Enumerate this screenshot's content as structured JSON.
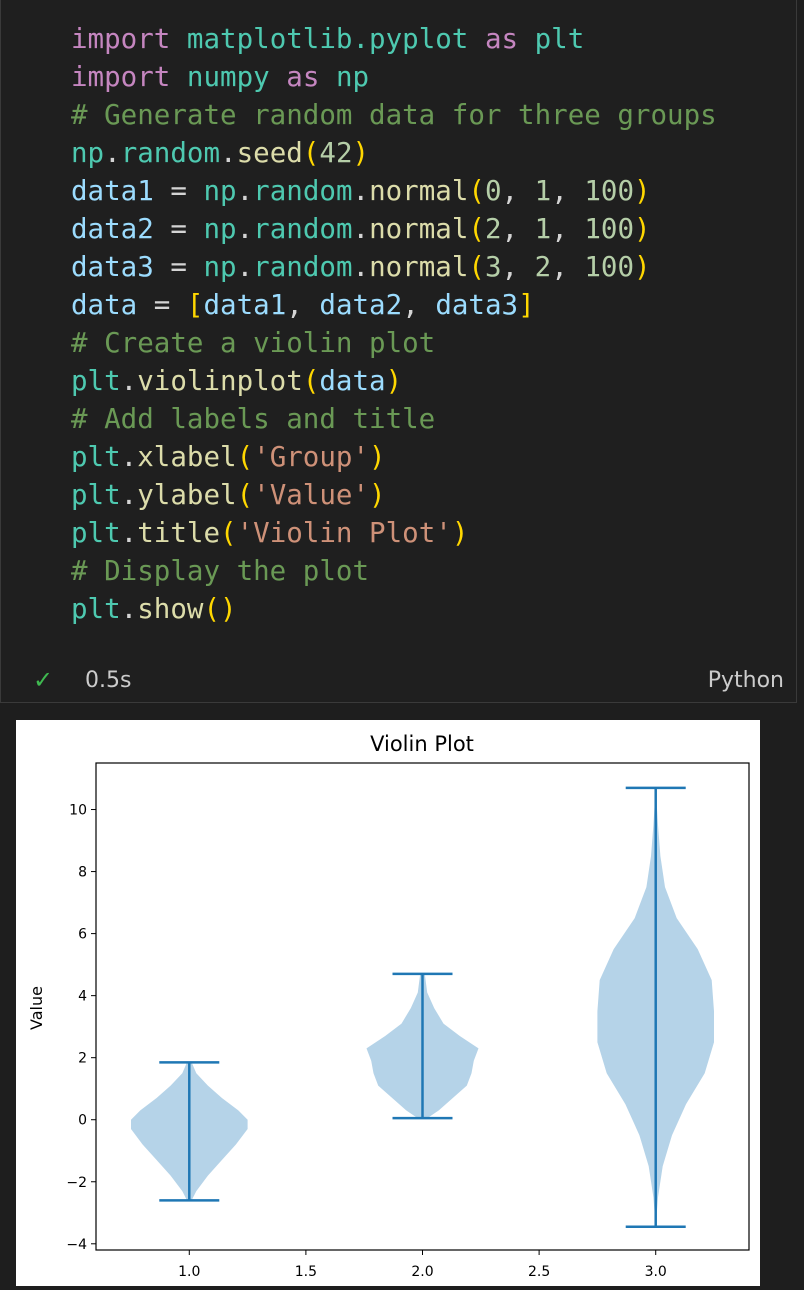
{
  "cell": {
    "code_lines": [
      [
        [
          "kw",
          "import"
        ],
        [
          "t",
          " "
        ],
        [
          "mod",
          "matplotlib.pyplot"
        ],
        [
          "t",
          " "
        ],
        [
          "kw",
          "as"
        ],
        [
          "t",
          " "
        ],
        [
          "mod",
          "plt"
        ]
      ],
      [
        [
          "kw",
          "import"
        ],
        [
          "t",
          " "
        ],
        [
          "mod",
          "numpy"
        ],
        [
          "t",
          " "
        ],
        [
          "kw",
          "as"
        ],
        [
          "t",
          " "
        ],
        [
          "mod",
          "np"
        ]
      ],
      [
        [
          "cm",
          "# Generate random data for three groups"
        ]
      ],
      [
        [
          "mod",
          "np"
        ],
        [
          "t",
          "."
        ],
        [
          "mod",
          "random"
        ],
        [
          "t",
          "."
        ],
        [
          "fn",
          "seed"
        ],
        [
          "paren",
          "("
        ],
        [
          "num",
          "42"
        ],
        [
          "paren",
          ")"
        ]
      ],
      [
        [
          "var",
          "data1"
        ],
        [
          "t",
          " = "
        ],
        [
          "mod",
          "np"
        ],
        [
          "t",
          "."
        ],
        [
          "mod",
          "random"
        ],
        [
          "t",
          "."
        ],
        [
          "fn",
          "normal"
        ],
        [
          "paren",
          "("
        ],
        [
          "num",
          "0"
        ],
        [
          "t",
          ", "
        ],
        [
          "num",
          "1"
        ],
        [
          "t",
          ", "
        ],
        [
          "num",
          "100"
        ],
        [
          "paren",
          ")"
        ]
      ],
      [
        [
          "var",
          "data2"
        ],
        [
          "t",
          " = "
        ],
        [
          "mod",
          "np"
        ],
        [
          "t",
          "."
        ],
        [
          "mod",
          "random"
        ],
        [
          "t",
          "."
        ],
        [
          "fn",
          "normal"
        ],
        [
          "paren",
          "("
        ],
        [
          "num",
          "2"
        ],
        [
          "t",
          ", "
        ],
        [
          "num",
          "1"
        ],
        [
          "t",
          ", "
        ],
        [
          "num",
          "100"
        ],
        [
          "paren",
          ")"
        ]
      ],
      [
        [
          "var",
          "data3"
        ],
        [
          "t",
          " = "
        ],
        [
          "mod",
          "np"
        ],
        [
          "t",
          "."
        ],
        [
          "mod",
          "random"
        ],
        [
          "t",
          "."
        ],
        [
          "fn",
          "normal"
        ],
        [
          "paren",
          "("
        ],
        [
          "num",
          "3"
        ],
        [
          "t",
          ", "
        ],
        [
          "num",
          "2"
        ],
        [
          "t",
          ", "
        ],
        [
          "num",
          "100"
        ],
        [
          "paren",
          ")"
        ]
      ],
      [
        [
          "var",
          "data"
        ],
        [
          "t",
          " = "
        ],
        [
          "bracket",
          "["
        ],
        [
          "var",
          "data1"
        ],
        [
          "t",
          ", "
        ],
        [
          "var",
          "data2"
        ],
        [
          "t",
          ", "
        ],
        [
          "var",
          "data3"
        ],
        [
          "bracket",
          "]"
        ]
      ],
      [
        [
          "cm",
          "# Create a violin plot"
        ]
      ],
      [
        [
          "mod",
          "plt"
        ],
        [
          "t",
          "."
        ],
        [
          "fn",
          "violinplot"
        ],
        [
          "paren",
          "("
        ],
        [
          "var",
          "data"
        ],
        [
          "paren",
          ")"
        ]
      ],
      [
        [
          "cm",
          "# Add labels and title"
        ]
      ],
      [
        [
          "mod",
          "plt"
        ],
        [
          "t",
          "."
        ],
        [
          "fn",
          "xlabel"
        ],
        [
          "paren",
          "("
        ],
        [
          "str",
          "'Group'"
        ],
        [
          "paren",
          ")"
        ]
      ],
      [
        [
          "mod",
          "plt"
        ],
        [
          "t",
          "."
        ],
        [
          "fn",
          "ylabel"
        ],
        [
          "paren",
          "("
        ],
        [
          "str",
          "'Value'"
        ],
        [
          "paren",
          ")"
        ]
      ],
      [
        [
          "mod",
          "plt"
        ],
        [
          "t",
          "."
        ],
        [
          "fn",
          "title"
        ],
        [
          "paren",
          "("
        ],
        [
          "str",
          "'Violin Plot'"
        ],
        [
          "paren",
          ")"
        ]
      ],
      [
        [
          "cm",
          "# Display the plot"
        ]
      ],
      [
        [
          "mod",
          "plt"
        ],
        [
          "t",
          "."
        ],
        [
          "fn",
          "show"
        ],
        [
          "paren",
          "("
        ],
        [
          "paren",
          ")"
        ]
      ]
    ],
    "status": {
      "check": "✓",
      "elapsed": "0.5s",
      "language": "Python"
    }
  },
  "chart_data": {
    "type": "violin",
    "title": "Violin Plot",
    "xlabel": "",
    "ylabel": "Value",
    "xlim": [
      0.6,
      3.4
    ],
    "ylim": [
      -4.2,
      11.5
    ],
    "xticks": [
      1.0,
      1.5,
      2.0,
      2.5,
      3.0
    ],
    "xtick_labels": [
      "1.0",
      "1.5",
      "2.0",
      "2.5",
      "3.0"
    ],
    "yticks": [
      -4,
      -2,
      0,
      2,
      4,
      6,
      8,
      10
    ],
    "ytick_labels": [
      "−4",
      "−2",
      "0",
      "2",
      "4",
      "6",
      "8",
      "10"
    ],
    "color": "#1f77b4",
    "body_color": "#b5d3e8",
    "violins": [
      {
        "position": 1.0,
        "min": -2.6,
        "max": 1.85,
        "profile": [
          [
            -2.6,
            0.01
          ],
          [
            -2.3,
            0.03
          ],
          [
            -1.8,
            0.08
          ],
          [
            -1.3,
            0.14
          ],
          [
            -0.8,
            0.2
          ],
          [
            -0.3,
            0.25
          ],
          [
            0.0,
            0.25
          ],
          [
            0.3,
            0.21
          ],
          [
            0.7,
            0.14
          ],
          [
            1.1,
            0.08
          ],
          [
            1.5,
            0.03
          ],
          [
            1.85,
            0.01
          ]
        ]
      },
      {
        "position": 2.0,
        "min": 0.05,
        "max": 4.7,
        "profile": [
          [
            0.05,
            0.02
          ],
          [
            0.3,
            0.07
          ],
          [
            0.7,
            0.13
          ],
          [
            1.1,
            0.19
          ],
          [
            1.5,
            0.21
          ],
          [
            1.9,
            0.22
          ],
          [
            2.3,
            0.24
          ],
          [
            2.7,
            0.16
          ],
          [
            3.1,
            0.09
          ],
          [
            3.6,
            0.05
          ],
          [
            4.1,
            0.02
          ],
          [
            4.7,
            0.01
          ]
        ]
      },
      {
        "position": 3.0,
        "min": -3.45,
        "max": 10.7,
        "profile": [
          [
            -3.45,
            0.0
          ],
          [
            -2.5,
            0.01
          ],
          [
            -1.5,
            0.03
          ],
          [
            -0.5,
            0.07
          ],
          [
            0.5,
            0.13
          ],
          [
            1.5,
            0.21
          ],
          [
            2.5,
            0.25
          ],
          [
            3.5,
            0.25
          ],
          [
            4.5,
            0.24
          ],
          [
            5.5,
            0.18
          ],
          [
            6.5,
            0.09
          ],
          [
            7.5,
            0.04
          ],
          [
            8.5,
            0.02
          ],
          [
            9.5,
            0.01
          ],
          [
            10.7,
            0.0
          ]
        ]
      }
    ]
  }
}
